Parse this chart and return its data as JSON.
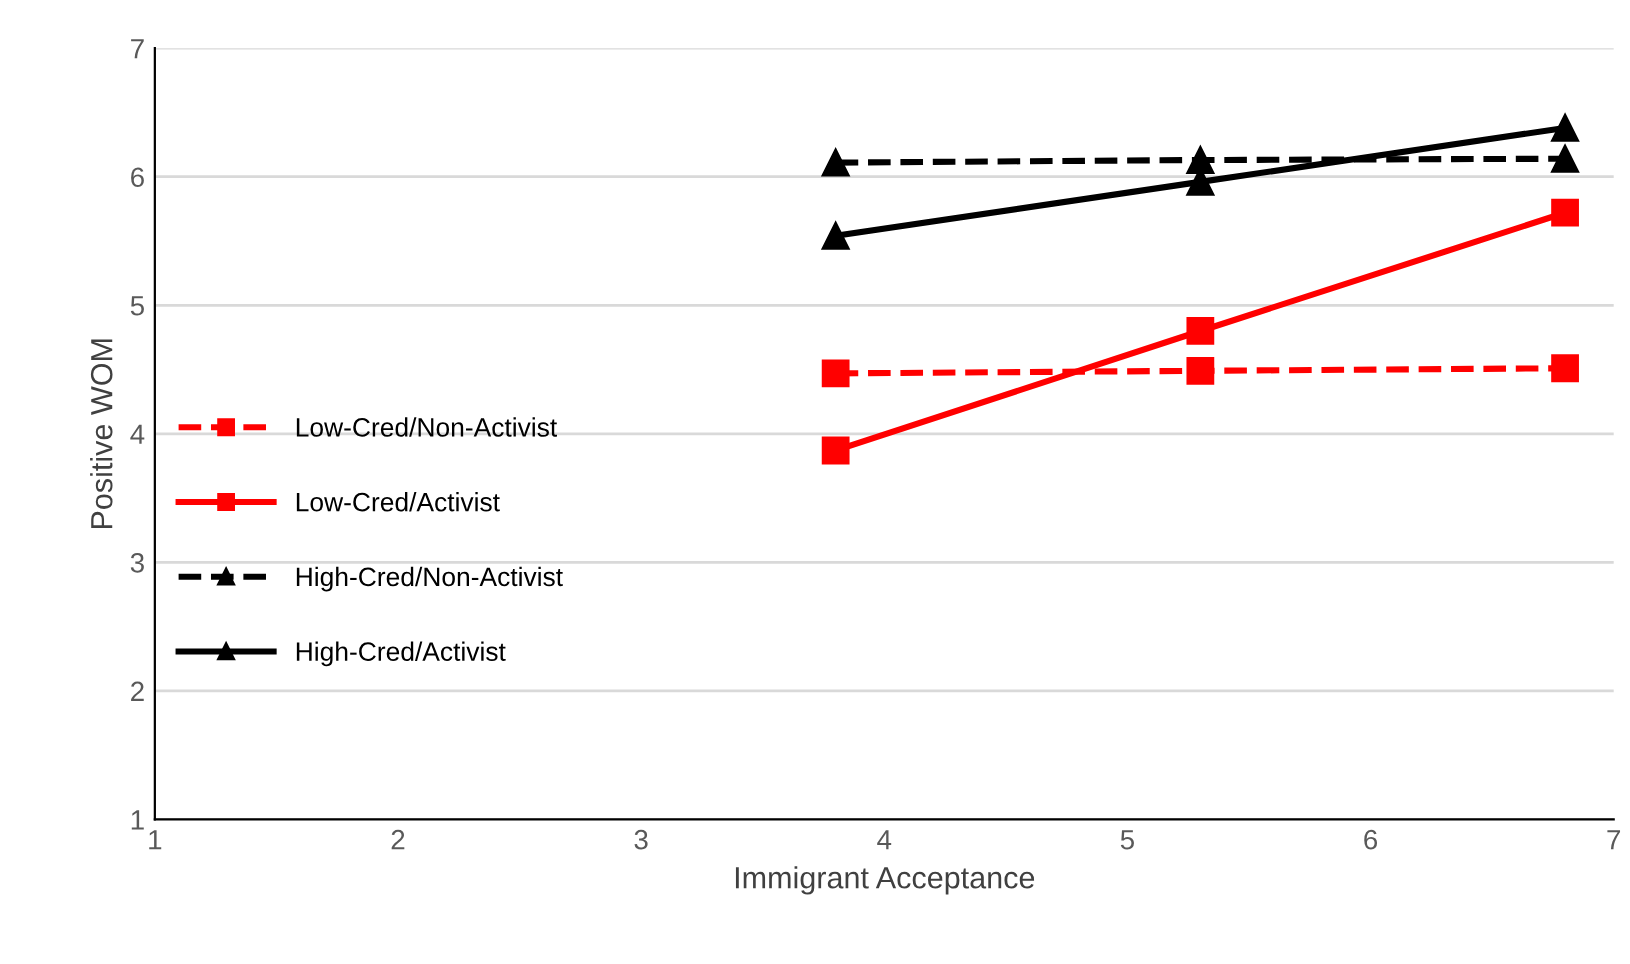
{
  "chart_data": {
    "type": "line",
    "xlabel": "Immigrant Acceptance",
    "ylabel": "Positive WOM",
    "x": [
      3.8,
      5.3,
      6.8
    ],
    "series": [
      {
        "name": "Low-Cred/Non-Activist",
        "color": "#ff0000",
        "values": [
          4.47,
          4.49,
          4.51
        ],
        "marker": "square",
        "line_style": "dashed"
      },
      {
        "name": "Low-Cred/Activist",
        "color": "#ff0000",
        "values": [
          3.87,
          4.8,
          5.72
        ],
        "marker": "square",
        "line_style": "solid"
      },
      {
        "name": "High-Cred/Non-Activist",
        "color": "#000000",
        "values": [
          6.11,
          6.13,
          6.14
        ],
        "marker": "triangle",
        "line_style": "dashed"
      },
      {
        "name": "High-Cred/Activist",
        "color": "#000000",
        "values": [
          5.54,
          5.96,
          6.38
        ],
        "marker": "triangle",
        "line_style": "solid"
      }
    ],
    "xlim": [
      1,
      7
    ],
    "xticks": [
      1,
      2,
      3,
      4,
      5,
      6,
      7
    ],
    "ylim": [
      1,
      7
    ],
    "yticks": [
      1,
      2,
      3,
      4,
      5,
      6,
      7
    ],
    "grid": "y",
    "legend": "left"
  }
}
